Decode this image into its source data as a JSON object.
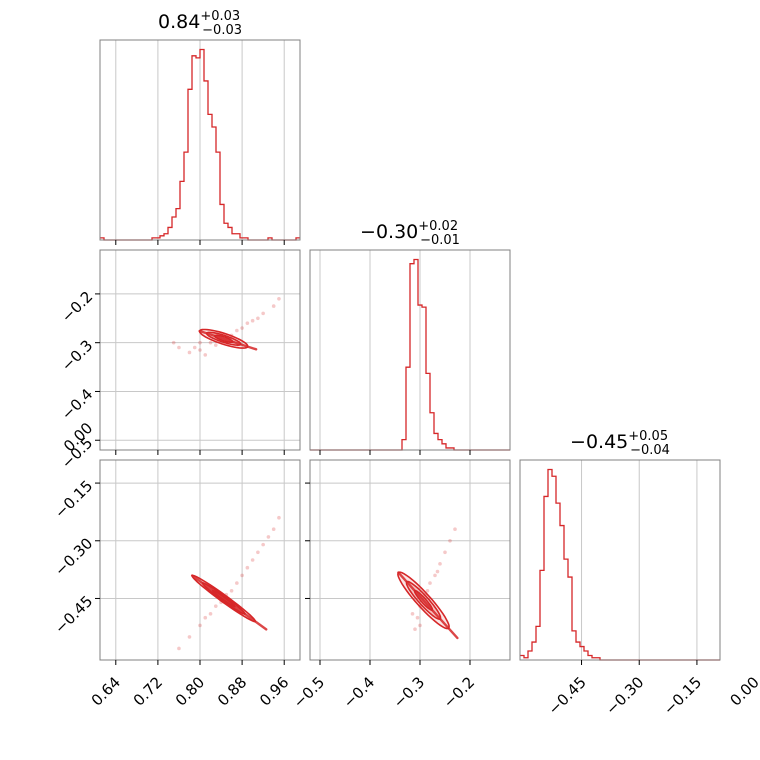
{
  "chart_data": {
    "type": "corner",
    "color": "#d62728",
    "grid": true,
    "panels": [
      {
        "id": "p00",
        "kind": "histogram",
        "param": 0,
        "title": {
          "value": "0.84",
          "plus": "+0.03",
          "minus": "−0.03"
        },
        "xlim": [
          0.61,
          0.99
        ],
        "bins": {
          "start": 0.61,
          "width": 0.0076,
          "counts": [
            0.01,
            0,
            0,
            0,
            0,
            0,
            0,
            0,
            0,
            0,
            0,
            0,
            0,
            0.01,
            0.01,
            0.02,
            0.03,
            0.06,
            0.11,
            0.15,
            0.28,
            0.42,
            0.72,
            0.88,
            0.87,
            0.91,
            0.76,
            0.6,
            0.54,
            0.42,
            0.17,
            0.08,
            0.06,
            0.03,
            0.03,
            0.01,
            0.01,
            0,
            0,
            0,
            0,
            0,
            0.01,
            0,
            0,
            0,
            0,
            0,
            0,
            0.01
          ]
        }
      },
      {
        "id": "p11",
        "kind": "histogram",
        "param": 1,
        "title": {
          "value": "−0.30",
          "plus": "+0.02",
          "minus": "−0.01"
        },
        "xlim": [
          -0.52,
          -0.12
        ],
        "bins": {
          "start": -0.52,
          "width": 0.008,
          "counts": [
            0,
            0,
            0,
            0,
            0,
            0,
            0,
            0,
            0,
            0,
            0,
            0,
            0,
            0,
            0,
            0,
            0,
            0,
            0,
            0,
            0,
            0,
            0,
            0.05,
            0.4,
            0.9,
            0.92,
            0.7,
            0.69,
            0.37,
            0.18,
            0.08,
            0.05,
            0.03,
            0.01,
            0.01,
            0,
            0,
            0,
            0,
            0,
            0,
            0,
            0,
            0,
            0,
            0,
            0,
            0,
            0
          ]
        }
      },
      {
        "id": "p22",
        "kind": "histogram",
        "param": 2,
        "title": {
          "value": "−0.45",
          "plus": "+0.05",
          "minus": "−0.04"
        },
        "xlim": [
          -0.61,
          -0.09
        ],
        "xticks": [
          -0.45,
          -0.3,
          -0.15,
          0.0
        ],
        "xtick_labels": [
          "−0.45",
          "−0.30",
          "−0.15",
          "0.00"
        ],
        "bins": {
          "start": -0.61,
          "width": 0.0104,
          "counts": [
            0.02,
            0.01,
            0.04,
            0.08,
            0.15,
            0.4,
            0.73,
            0.85,
            0.82,
            0.7,
            0.6,
            0.45,
            0.37,
            0.13,
            0.08,
            0.06,
            0.04,
            0.02,
            0.01,
            0.01,
            0,
            0,
            0,
            0,
            0,
            0,
            0,
            0,
            0,
            0,
            0,
            0,
            0,
            0,
            0,
            0,
            0,
            0,
            0,
            0,
            0,
            0,
            0,
            0,
            0,
            0,
            0,
            0,
            0,
            0
          ]
        }
      },
      {
        "id": "p10",
        "kind": "scatter",
        "xparam": 0,
        "yparam": 1,
        "xlim": [
          0.61,
          0.99
        ],
        "ylim": [
          -0.52,
          -0.11
        ],
        "yticks": [
          -0.2,
          -0.3,
          -0.4,
          -0.5
        ],
        "ytick_labels": [
          "−0.2",
          "−0.3",
          "−0.4",
          "−0.5"
        ],
        "points": [
          [
            0.79,
            -0.31
          ],
          [
            0.8,
            -0.315
          ],
          [
            0.82,
            -0.3
          ],
          [
            0.84,
            -0.295
          ],
          [
            0.86,
            -0.285
          ],
          [
            0.88,
            -0.27
          ],
          [
            0.9,
            -0.255
          ],
          [
            0.92,
            -0.24
          ],
          [
            0.94,
            -0.225
          ],
          [
            0.95,
            -0.21
          ],
          [
            0.83,
            -0.305
          ],
          [
            0.85,
            -0.29
          ],
          [
            0.87,
            -0.275
          ],
          [
            0.89,
            -0.26
          ],
          [
            0.91,
            -0.25
          ],
          [
            0.78,
            -0.32
          ],
          [
            0.76,
            -0.31
          ],
          [
            0.75,
            -0.3
          ],
          [
            0.81,
            -0.325
          ],
          [
            0.8,
            -0.3
          ]
        ],
        "contours": [
          {
            "cx": 0.845,
            "cy": -0.292,
            "rx": 0.048,
            "ry": 0.011,
            "angle_deg": -18
          },
          {
            "cx": 0.845,
            "cy": -0.292,
            "rx": 0.034,
            "ry": 0.007,
            "angle_deg": -18
          },
          {
            "cx": 0.845,
            "cy": -0.292,
            "rx": 0.018,
            "ry": 0.004,
            "angle_deg": -18
          }
        ]
      },
      {
        "id": "p20",
        "kind": "scatter",
        "xparam": 0,
        "yparam": 2,
        "xlim": [
          0.61,
          0.99
        ],
        "ylim": [
          -0.61,
          -0.09
        ],
        "xticks": [
          0.64,
          0.72,
          0.8,
          0.88,
          0.96
        ],
        "xtick_labels": [
          "0.64",
          "0.72",
          "0.80",
          "0.88",
          "0.96"
        ],
        "yticks": [
          0.0,
          -0.15,
          -0.3,
          -0.45
        ],
        "ytick_labels": [
          "0.00",
          "−0.15",
          "−0.30",
          "−0.45"
        ],
        "points": [
          [
            0.78,
            -0.55
          ],
          [
            0.8,
            -0.52
          ],
          [
            0.82,
            -0.49
          ],
          [
            0.84,
            -0.46
          ],
          [
            0.86,
            -0.43
          ],
          [
            0.88,
            -0.39
          ],
          [
            0.9,
            -0.35
          ],
          [
            0.92,
            -0.31
          ],
          [
            0.94,
            -0.27
          ],
          [
            0.95,
            -0.24
          ],
          [
            0.76,
            -0.58
          ],
          [
            0.81,
            -0.5
          ],
          [
            0.83,
            -0.47
          ],
          [
            0.85,
            -0.44
          ],
          [
            0.87,
            -0.41
          ],
          [
            0.89,
            -0.37
          ],
          [
            0.91,
            -0.33
          ],
          [
            0.93,
            -0.29
          ]
        ],
        "contours": [
          {
            "cx": 0.845,
            "cy": -0.45,
            "rx": 0.074,
            "ry": 0.009,
            "angle_deg": -36
          },
          {
            "cx": 0.845,
            "cy": -0.45,
            "rx": 0.05,
            "ry": 0.006,
            "angle_deg": -36
          },
          {
            "cx": 0.845,
            "cy": -0.45,
            "rx": 0.026,
            "ry": 0.003,
            "angle_deg": -36
          }
        ]
      },
      {
        "id": "p21",
        "kind": "scatter",
        "xparam": 1,
        "yparam": 2,
        "xlim": [
          -0.52,
          -0.12
        ],
        "ylim": [
          -0.61,
          -0.09
        ],
        "xticks": [
          -0.5,
          -0.4,
          -0.3,
          -0.2
        ],
        "xtick_labels": [
          "−0.5",
          "−0.4",
          "−0.3",
          "−0.2"
        ],
        "points": [
          [
            -0.31,
            -0.53
          ],
          [
            -0.305,
            -0.5
          ],
          [
            -0.3,
            -0.47
          ],
          [
            -0.29,
            -0.44
          ],
          [
            -0.28,
            -0.41
          ],
          [
            -0.27,
            -0.39
          ],
          [
            -0.26,
            -0.36
          ],
          [
            -0.25,
            -0.33
          ],
          [
            -0.24,
            -0.3
          ],
          [
            -0.23,
            -0.27
          ],
          [
            -0.315,
            -0.49
          ],
          [
            -0.3,
            -0.52
          ],
          [
            -0.285,
            -0.43
          ],
          [
            -0.265,
            -0.38
          ]
        ],
        "contours": [
          {
            "cx": -0.293,
            "cy": -0.455,
            "rx": 0.075,
            "ry": 0.018,
            "angle_deg": -48
          },
          {
            "cx": -0.293,
            "cy": -0.455,
            "rx": 0.05,
            "ry": 0.012,
            "angle_deg": -48
          },
          {
            "cx": -0.293,
            "cy": -0.455,
            "rx": 0.026,
            "ry": 0.006,
            "angle_deg": -48
          }
        ]
      }
    ]
  }
}
